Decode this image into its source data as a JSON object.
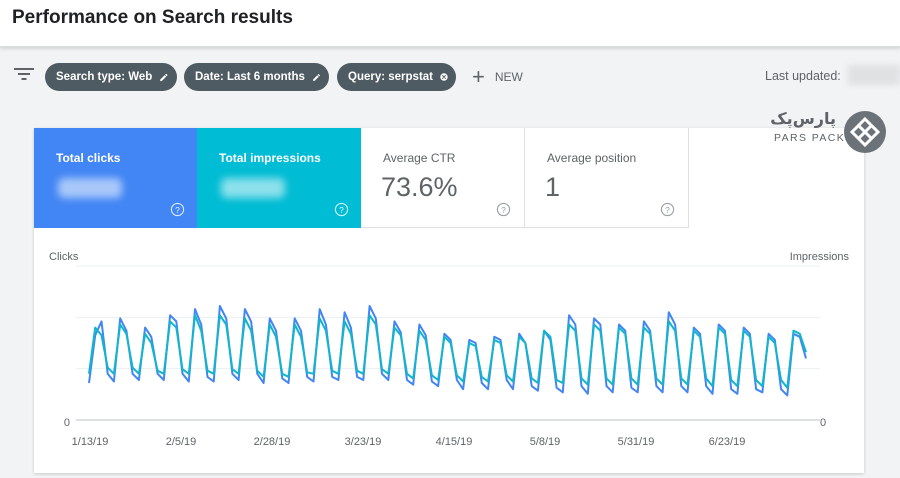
{
  "header": {
    "title": "Performance on Search results"
  },
  "filters": {
    "chips": [
      {
        "label": "Search type: Web",
        "action": "edit"
      },
      {
        "label": "Date: Last 6 months",
        "action": "edit"
      },
      {
        "label": "Query: serpstat",
        "action": "remove"
      }
    ],
    "new_label": "NEW",
    "last_updated_label": "Last updated:"
  },
  "metrics": {
    "clicks": {
      "label": "Total clicks"
    },
    "impressions": {
      "label": "Total impressions"
    },
    "ctr": {
      "label": "Average CTR",
      "value": "73.6%"
    },
    "position": {
      "label": "Average position",
      "value": "1"
    }
  },
  "logo": {
    "name_fa": "پارس‌پک",
    "name_en": "PARS PACK"
  },
  "colors": {
    "clicks": "#4285f4",
    "impressions": "#00bcd4",
    "chip": "#4f5b62"
  },
  "chart_data": {
    "type": "line",
    "left_axis_label": "Clicks",
    "right_axis_label": "Impressions",
    "y_zero_label": "0",
    "x_tick_labels": [
      "1/13/19",
      "2/5/19",
      "2/28/19",
      "3/23/19",
      "4/15/19",
      "5/8/19",
      "5/31/19",
      "6/23/19"
    ],
    "y_range": [
      0,
      1
    ],
    "series": [
      {
        "values": [
          0.24,
          0.55,
          0.64,
          0.3,
          0.25,
          0.66,
          0.58,
          0.3,
          0.26,
          0.6,
          0.54,
          0.3,
          0.26,
          0.68,
          0.64,
          0.3,
          0.25,
          0.72,
          0.62,
          0.28,
          0.25,
          0.74,
          0.66,
          0.3,
          0.26,
          0.72,
          0.64,
          0.3,
          0.24,
          0.66,
          0.58,
          0.27,
          0.24,
          0.66,
          0.58,
          0.28,
          0.25,
          0.72,
          0.62,
          0.28,
          0.26,
          0.7,
          0.6,
          0.28,
          0.26,
          0.74,
          0.66,
          0.3,
          0.26,
          0.64,
          0.57,
          0.26,
          0.23,
          0.62,
          0.55,
          0.25,
          0.22,
          0.56,
          0.52,
          0.26,
          0.2,
          0.52,
          0.5,
          0.24,
          0.2,
          0.54,
          0.52,
          0.26,
          0.2,
          0.56,
          0.5,
          0.22,
          0.19,
          0.58,
          0.52,
          0.21,
          0.18,
          0.68,
          0.62,
          0.22,
          0.17,
          0.66,
          0.62,
          0.22,
          0.18,
          0.62,
          0.58,
          0.21,
          0.18,
          0.64,
          0.58,
          0.22,
          0.18,
          0.7,
          0.62,
          0.22,
          0.18,
          0.6,
          0.56,
          0.22,
          0.17,
          0.62,
          0.58,
          0.2,
          0.17,
          0.6,
          0.56,
          0.2,
          0.18,
          0.56,
          0.52,
          0.2,
          0.16,
          0.56,
          0.54,
          0.4
        ],
        "color": "#4285f4"
      },
      {
        "values": [
          0.3,
          0.6,
          0.55,
          0.34,
          0.3,
          0.62,
          0.56,
          0.34,
          0.3,
          0.56,
          0.5,
          0.32,
          0.3,
          0.64,
          0.6,
          0.33,
          0.3,
          0.68,
          0.58,
          0.32,
          0.3,
          0.68,
          0.62,
          0.33,
          0.3,
          0.66,
          0.58,
          0.32,
          0.28,
          0.62,
          0.54,
          0.3,
          0.28,
          0.62,
          0.54,
          0.31,
          0.3,
          0.66,
          0.58,
          0.32,
          0.3,
          0.64,
          0.56,
          0.32,
          0.3,
          0.68,
          0.62,
          0.33,
          0.3,
          0.6,
          0.55,
          0.3,
          0.27,
          0.58,
          0.52,
          0.29,
          0.26,
          0.54,
          0.5,
          0.29,
          0.25,
          0.5,
          0.48,
          0.28,
          0.25,
          0.52,
          0.5,
          0.29,
          0.25,
          0.54,
          0.5,
          0.27,
          0.24,
          0.58,
          0.54,
          0.26,
          0.24,
          0.62,
          0.58,
          0.27,
          0.23,
          0.62,
          0.58,
          0.27,
          0.23,
          0.6,
          0.56,
          0.27,
          0.23,
          0.6,
          0.56,
          0.27,
          0.23,
          0.64,
          0.58,
          0.27,
          0.23,
          0.58,
          0.54,
          0.27,
          0.22,
          0.6,
          0.56,
          0.26,
          0.22,
          0.58,
          0.54,
          0.26,
          0.22,
          0.54,
          0.5,
          0.26,
          0.21,
          0.58,
          0.56,
          0.44
        ],
        "color": "#12b5cb"
      }
    ]
  }
}
